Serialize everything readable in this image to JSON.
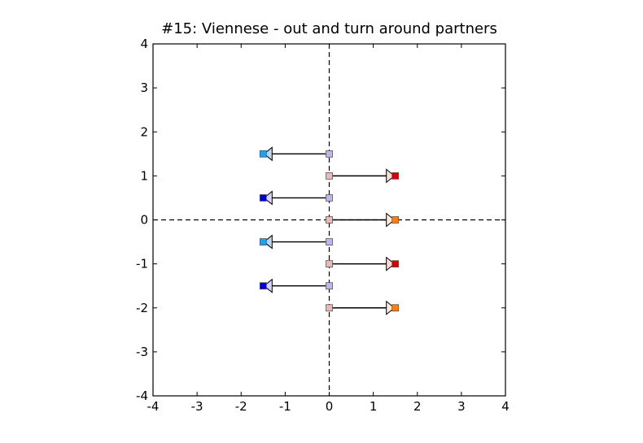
{
  "chart_data": {
    "type": "scatter",
    "title": "#15: Viennese - out and turn around partners",
    "xlabel": "",
    "ylabel": "",
    "xlim": [
      -4,
      4
    ],
    "ylim": [
      -4,
      4
    ],
    "xticks": [
      -4,
      -3,
      -2,
      -1,
      0,
      1,
      2,
      3,
      4
    ],
    "yticks": [
      -4,
      -3,
      -2,
      -1,
      0,
      1,
      2,
      3,
      4
    ],
    "reference_lines": {
      "x": 0,
      "y": 0,
      "style": "dashed"
    },
    "grid": false,
    "legend": "none",
    "arrows": [
      {
        "from": [
          0,
          1.5
        ],
        "to": [
          -1.5,
          1.5
        ],
        "start_color": "#b8b8ef",
        "end_color": "#1da1f2",
        "head_color": "#b8d8ef"
      },
      {
        "from": [
          0,
          1.0
        ],
        "to": [
          1.5,
          1.0
        ],
        "start_color": "#efb8b8",
        "end_color": "#d40000",
        "head_color": "#ffd8d8"
      },
      {
        "from": [
          0,
          0.5
        ],
        "to": [
          -1.5,
          0.5
        ],
        "start_color": "#b8b8ef",
        "end_color": "#0000d4",
        "head_color": "#d8d8ff"
      },
      {
        "from": [
          0,
          0.0
        ],
        "to": [
          1.5,
          0.0
        ],
        "start_color": "#efb8b8",
        "end_color": "#ff7f0e",
        "head_color": "#ffe8d8"
      },
      {
        "from": [
          0,
          -0.5
        ],
        "to": [
          -1.5,
          -0.5
        ],
        "start_color": "#b8b8ef",
        "end_color": "#1da1f2",
        "head_color": "#b8d8ef"
      },
      {
        "from": [
          0,
          -1.0
        ],
        "to": [
          1.5,
          -1.0
        ],
        "start_color": "#efb8b8",
        "end_color": "#d40000",
        "head_color": "#ffd8d8"
      },
      {
        "from": [
          0,
          -1.5
        ],
        "to": [
          -1.5,
          -1.5
        ],
        "start_color": "#b8b8ef",
        "end_color": "#0000d4",
        "head_color": "#d8d8ff"
      },
      {
        "from": [
          0,
          -2.0
        ],
        "to": [
          1.5,
          -2.0
        ],
        "start_color": "#efb8b8",
        "end_color": "#ff7f0e",
        "head_color": "#ffe8d8"
      }
    ]
  }
}
